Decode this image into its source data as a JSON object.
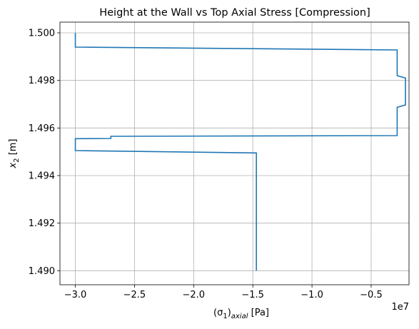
{
  "chart_data": {
    "type": "line",
    "title": "Height at the Wall vs Top Axial Stress [Compression]",
    "xlabel": {
      "base": "(σ",
      "sub1": "1",
      "mid": ")",
      "sub2": "axial",
      "suffix": " [Pa]"
    },
    "ylabel": {
      "base": "x",
      "sub": "2",
      "suffix": " [m]"
    },
    "x_offset_label": "1e7",
    "xlim": [
      -3.13,
      -0.18
    ],
    "ylim": [
      1.48941,
      1.50045
    ],
    "x_scale_factor": 10000000,
    "xticks": [
      -3.0,
      -2.5,
      -2.0,
      -1.5,
      -1.0,
      -0.5
    ],
    "xtick_labels": [
      "−3.0",
      "−2.5",
      "−2.0",
      "−1.5",
      "−1.0",
      "−0.5"
    ],
    "yticks": [
      1.49,
      1.492,
      1.494,
      1.496,
      1.498,
      1.5
    ],
    "ytick_labels": [
      "1.490",
      "1.492",
      "1.494",
      "1.496",
      "1.498",
      "1.500"
    ],
    "grid": true,
    "series": [
      {
        "color": "#1f77b4",
        "x": [
          -1.47,
          -1.47,
          -3.0,
          -3.0,
          -2.7,
          -2.7,
          -0.28,
          -0.28,
          -0.21,
          -0.21,
          -0.28,
          -0.28,
          -3.0,
          -3.0
        ],
        "y": [
          1.49,
          1.49495,
          1.49505,
          1.49555,
          1.49556,
          1.49565,
          1.49568,
          1.49687,
          1.49697,
          1.4981,
          1.4982,
          1.49928,
          1.4994,
          1.5
        ]
      }
    ]
  }
}
